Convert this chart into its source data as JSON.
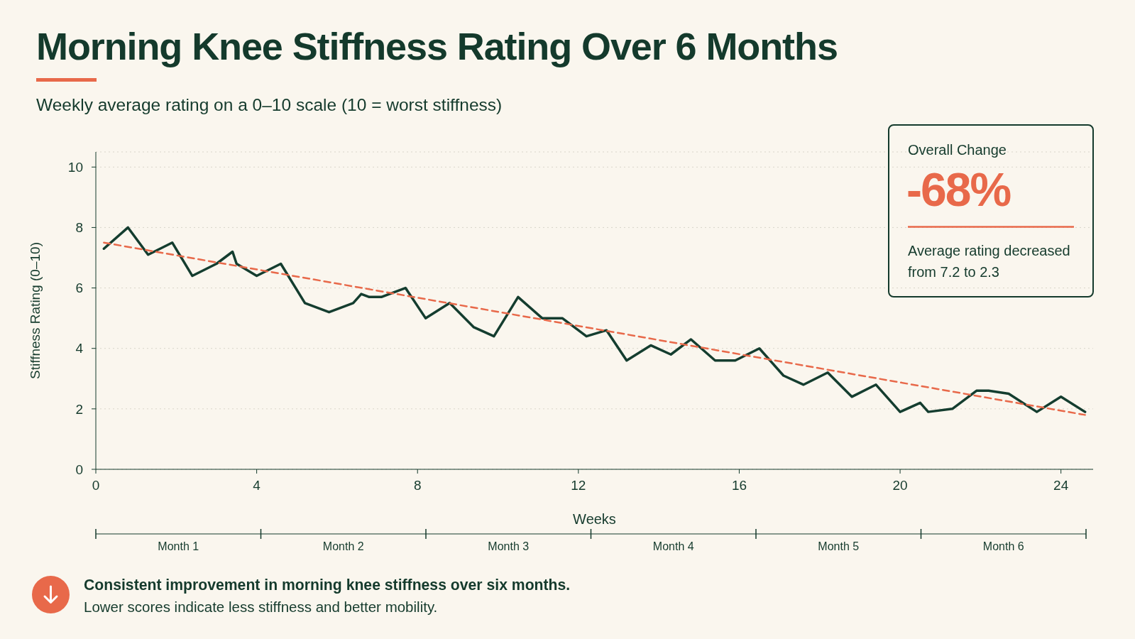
{
  "chart_data": {
    "type": "line",
    "title": "Morning Knee Stiffness Rating Over 6 Months",
    "subtitle": "Weekly average rating on a 0–10 scale (10 = worst stiffness)",
    "xlabel": "Weeks",
    "ylabel": "Stiffness Rating (0–10)",
    "series": [
      {
        "type": "line",
        "color": "#143d2f",
        "line_style": "solid",
        "x": [
          0.2,
          0.8,
          1.3,
          1.9,
          2.4,
          3.0,
          3.4,
          3.5,
          4.0,
          4.6,
          5.2,
          5.8,
          6.4,
          6.6,
          6.8,
          7.1,
          7.7,
          8.2,
          8.8,
          9.4,
          9.9,
          10.5,
          11.1,
          11.6,
          12.2,
          12.7,
          13.2,
          13.8,
          14.3,
          14.8,
          15.4,
          15.9,
          16.5,
          17.1,
          17.6,
          18.2,
          18.8,
          19.4,
          20.0,
          20.5,
          20.7,
          21.3,
          21.9,
          22.2,
          22.7,
          23.4,
          24.0,
          24.6
        ],
        "values": [
          7.3,
          8.0,
          7.1,
          7.5,
          6.4,
          6.8,
          7.2,
          6.8,
          6.4,
          6.8,
          5.5,
          5.2,
          5.5,
          5.8,
          5.7,
          5.7,
          6.0,
          5.0,
          5.5,
          4.7,
          4.4,
          5.7,
          5.0,
          5.0,
          4.4,
          4.6,
          3.6,
          4.1,
          3.8,
          4.3,
          3.6,
          3.6,
          4.0,
          3.1,
          2.8,
          3.2,
          2.4,
          2.8,
          1.9,
          2.2,
          1.9,
          2.0,
          2.6,
          2.6,
          2.5,
          1.9,
          2.4,
          1.9
        ]
      },
      {
        "type": "line",
        "color": "#e8694a",
        "line_style": "dashed",
        "x": [
          0.2,
          24.6
        ],
        "values": [
          7.5,
          1.8
        ]
      }
    ],
    "xlim": [
      0,
      24.8
    ],
    "xticks": [
      0,
      4,
      8,
      12,
      16,
      20,
      24
    ],
    "ylim": [
      0,
      10.5
    ],
    "yticks": [
      0,
      2,
      4,
      6,
      8,
      10
    ],
    "grid": "y",
    "marker": "none",
    "annotations": [
      "Overall Change",
      "-68%",
      "Average rating decreased from 7.2 to 2.3",
      "Consistent improvement in morning knee stiffness over six months.",
      "Lower scores indicate less stiffness and better mobility.",
      "Month 1",
      "Month 2",
      "Month 3",
      "Month 4",
      "Month 5",
      "Month 6"
    ]
  }
}
